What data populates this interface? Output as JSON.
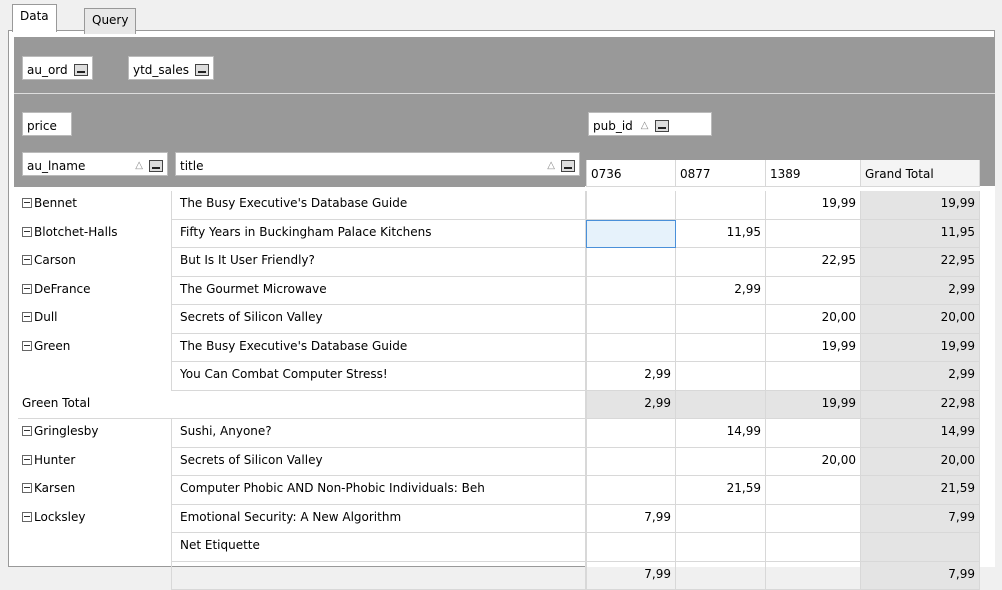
{
  "tabs": [
    "Data",
    "Query"
  ],
  "filter_fields": [
    "au_ord",
    "ytd_sales"
  ],
  "data_field": "price",
  "column_field": "pub_id",
  "row_fields": [
    "au_lname",
    "title"
  ],
  "columns": [
    "0736",
    "0877",
    "1389",
    "Grand Total"
  ],
  "rows": [
    {
      "label": "Bennet",
      "title": "The Busy Executive's Database Guide",
      "cells": [
        null,
        null,
        "19,99",
        "19,99"
      ]
    },
    {
      "label": "Blotchet-Halls",
      "title": "Fifty Years in Buckingham Palace Kitchens",
      "cells": [
        null,
        "11,95",
        null,
        "11,95"
      ]
    },
    {
      "label": "Carson",
      "title": "But Is It User Friendly?",
      "cells": [
        null,
        null,
        "22,95",
        "22,95"
      ]
    },
    {
      "label": "DeFrance",
      "title": "The Gourmet Microwave",
      "cells": [
        null,
        "2,99",
        null,
        "2,99"
      ]
    },
    {
      "label": "Dull",
      "title": "Secrets of Silicon Valley",
      "cells": [
        null,
        null,
        "20,00",
        "20,00"
      ]
    },
    {
      "label": "Green",
      "title": "The Busy Executive's Database Guide",
      "cells": [
        null,
        null,
        "19,99",
        "19,99"
      ]
    },
    {
      "title": "You Can Combat Computer Stress!",
      "cells": [
        "2,99",
        null,
        null,
        "2,99"
      ]
    },
    {
      "label": "Green Total",
      "cells": [
        "2,99",
        null,
        "19,99",
        "22,98"
      ]
    },
    {
      "label": "Gringlesby",
      "title": "Sushi, Anyone?",
      "cells": [
        null,
        "14,99",
        null,
        "14,99"
      ]
    },
    {
      "label": "Hunter",
      "title": "Secrets of Silicon Valley",
      "cells": [
        null,
        null,
        "20,00",
        "20,00"
      ]
    },
    {
      "label": "Karsen",
      "title": "Computer Phobic AND Non-Phobic Individuals: Beh",
      "cells": [
        null,
        "21,59",
        null,
        "21,59"
      ]
    },
    {
      "label": "Locksley",
      "title": "Emotional Security: A New Algorithm",
      "cells": [
        "7,99",
        null,
        null,
        "7,99"
      ]
    },
    {
      "title": "Net Etiquette",
      "cells": [
        null,
        null,
        null,
        null
      ]
    },
    {
      "cells": [
        "7,99",
        null,
        null,
        "7,99"
      ]
    }
  ]
}
